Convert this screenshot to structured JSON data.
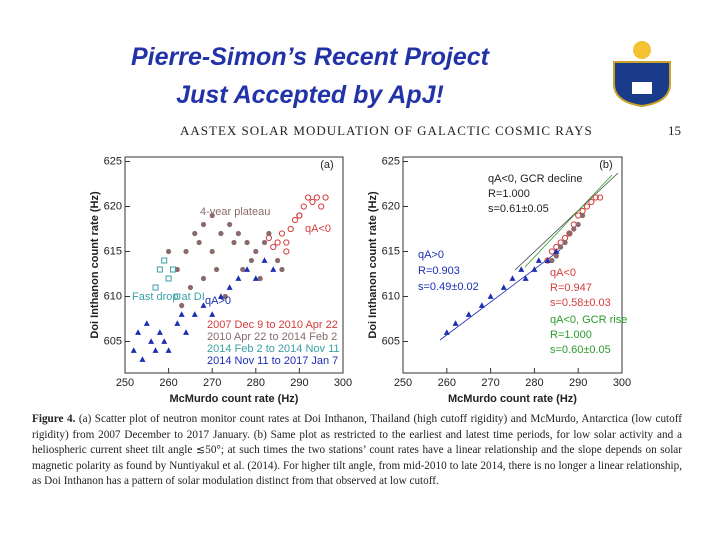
{
  "title": [
    "Pierre-Simon’s Recent Project",
    "Just Accepted by ApJ!"
  ],
  "paper_header": "AASTEX SOLAR MODULATION OF GALACTIC COSMIC RAYS",
  "page_number": "15",
  "chart_data": [
    {
      "type": "scatter",
      "panel": "(a)",
      "xlabel": "McMurdo count rate (Hz)",
      "ylabel": "Doi Inthanon count rate (Hz)",
      "xlim": [
        250,
        300
      ],
      "ylim": [
        601.5,
        625.5
      ],
      "xticks": [
        250,
        260,
        270,
        280,
        290,
        300
      ],
      "yticks": [
        605,
        610,
        615,
        620,
        625
      ],
      "annotations": [
        "4-year plateau",
        "qA<0",
        "Fast drop at DI",
        "qA>0"
      ],
      "series": [
        {
          "name": "2007 Dec 9 to 2010 Apr 22",
          "color": "#d43c3c",
          "marker": "open-circle",
          "x": [
            283,
            285,
            286,
            287,
            288,
            289,
            290,
            291,
            292,
            293,
            294,
            295,
            296,
            284,
            287,
            290
          ],
          "values": [
            616.5,
            616,
            617,
            616,
            617.5,
            618.5,
            619,
            620,
            621,
            620.5,
            621,
            620,
            621,
            615.5,
            615,
            619
          ]
        },
        {
          "name": "2010 Apr 22 to 2014 Feb 2",
          "color": "#8c6a6a",
          "marker": "circle",
          "x": [
            262,
            264,
            266,
            268,
            270,
            272,
            274,
            275,
            276,
            278,
            280,
            282,
            265,
            268,
            271,
            273,
            277,
            279,
            281,
            263,
            260,
            283,
            285,
            286,
            270,
            267
          ],
          "values": [
            613,
            615,
            617,
            618,
            619,
            617,
            618,
            616,
            617,
            616,
            615,
            616,
            611,
            612,
            613,
            610,
            613,
            614,
            612,
            609,
            615,
            617,
            614,
            613,
            615,
            616
          ]
        },
        {
          "name": "2014 Feb 2 to 2014 Nov 11",
          "color": "#3a9fa5",
          "marker": "open-square",
          "x": [
            258,
            259,
            260,
            261,
            262,
            257
          ],
          "values": [
            613,
            614,
            612,
            613,
            610,
            611
          ]
        },
        {
          "name": "2014 Nov 11 to 2017 Jan 7",
          "color": "#1b2fb3",
          "marker": "triangle",
          "x": [
            252,
            254,
            256,
            258,
            260,
            262,
            264,
            266,
            268,
            270,
            272,
            274,
            276,
            278,
            280,
            282,
            284,
            255,
            259,
            263,
            253,
            257
          ],
          "values": [
            604,
            603,
            605,
            606,
            604,
            607,
            606,
            608,
            609,
            608,
            610,
            611,
            612,
            613,
            612,
            614,
            613,
            607,
            605,
            608,
            606,
            604
          ]
        }
      ]
    },
    {
      "type": "scatter",
      "panel": "(b)",
      "xlabel": "McMurdo count rate (Hz)",
      "ylabel": "Doi Inthanon count rate (Hz)",
      "xlim": [
        250,
        300
      ],
      "ylim": [
        601.5,
        625.5
      ],
      "xticks": [
        250,
        260,
        270,
        280,
        290,
        300
      ],
      "yticks": [
        605,
        610,
        615,
        620,
        625
      ],
      "annotations": [
        "qA<0, GCR decline",
        "R=1.000",
        "s=0.61±0.05",
        "qA>0",
        "R=0.903",
        "s=0.49±0.02",
        "qA<0",
        "R=0.947",
        "s=0.58±0.03",
        "qA<0, GCR rise",
        "R=1.000",
        "s=0.60±0.05"
      ],
      "series": [
        {
          "color": "#d43c3c",
          "marker": "open-circle",
          "x": [
            283,
            284,
            285,
            286,
            287,
            288,
            289,
            290,
            291,
            292,
            293,
            294,
            295
          ],
          "values": [
            614,
            615,
            615.5,
            616,
            616.5,
            617,
            618,
            619,
            619.5,
            620,
            620.5,
            621,
            621
          ]
        },
        {
          "color": "#8c6a6a",
          "marker": "circle",
          "x": [
            284,
            285,
            286,
            287,
            288,
            289,
            290,
            291
          ],
          "values": [
            614,
            614.5,
            615.5,
            616,
            617,
            617.5,
            618,
            619
          ]
        },
        {
          "color": "#1b2fb3",
          "marker": "triangle",
          "x": [
            260,
            262,
            265,
            268,
            270,
            273,
            275,
            277,
            278,
            280,
            281,
            283,
            285
          ],
          "values": [
            606,
            607,
            608,
            609,
            610,
            611,
            612,
            613,
            612,
            613,
            614,
            614,
            615
          ]
        }
      ]
    }
  ],
  "caption": {
    "label": "Figure 4.",
    "text": "(a) Scatter plot of neutron monitor count rates at Doi Inthanon, Thailand (high cutoff rigidity) and McMurdo, Antarctica (low cutoff rigidity) from 2007 December to 2017 January. (b) Same plot as restricted to the earliest and latest time periods, for low solar activity and a heliospheric current sheet tilt angle ≲50°; at such times the two stations’ count rates have a linear relationship and the slope depends on solar magnetic polarity as found by Nuntiyakul et al. (2014). For higher tilt angle, from mid-2010 to late 2014, there is no longer a linear relationship, as Doi Inthanon has a pattern of solar modulation distinct from that observed at low cutoff."
  }
}
